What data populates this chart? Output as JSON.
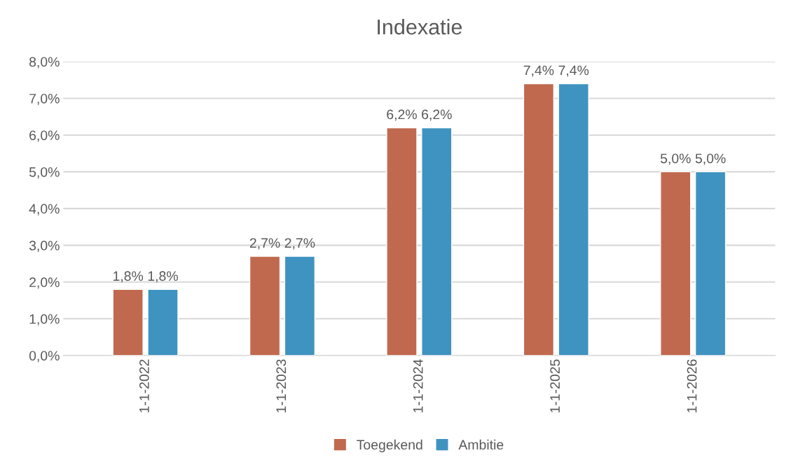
{
  "chart_data": {
    "type": "bar",
    "title": "Indexatie",
    "categories": [
      "1-1-2022",
      "1-1-2023",
      "1-1-2024",
      "1-1-2025",
      "1-1-2026"
    ],
    "series": [
      {
        "name": "Toegekend",
        "color": "#c0694f",
        "values": [
          1.8,
          2.7,
          6.2,
          7.4,
          5.0
        ],
        "value_labels": [
          "1,8%",
          "2,7%",
          "6,2%",
          "7,4%",
          "5,0%"
        ]
      },
      {
        "name": "Ambitie",
        "color": "#3f93c0",
        "values": [
          1.8,
          2.7,
          6.2,
          7.4,
          5.0
        ],
        "value_labels": [
          "1,8%",
          "2,7%",
          "6,2%",
          "7,4%",
          "5,0%"
        ]
      }
    ],
    "ylim": [
      0,
      8
    ],
    "yticks": [
      {
        "value": 0,
        "label": "0,0%"
      },
      {
        "value": 1,
        "label": "1,0%"
      },
      {
        "value": 2,
        "label": "2,0%"
      },
      {
        "value": 3,
        "label": "3,0%"
      },
      {
        "value": 4,
        "label": "4,0%"
      },
      {
        "value": 5,
        "label": "5,0%"
      },
      {
        "value": 6,
        "label": "6,0%"
      },
      {
        "value": 7,
        "label": "7,0%"
      },
      {
        "value": 8,
        "label": "8,0%"
      }
    ],
    "grid": "y",
    "legend": "bottom"
  }
}
